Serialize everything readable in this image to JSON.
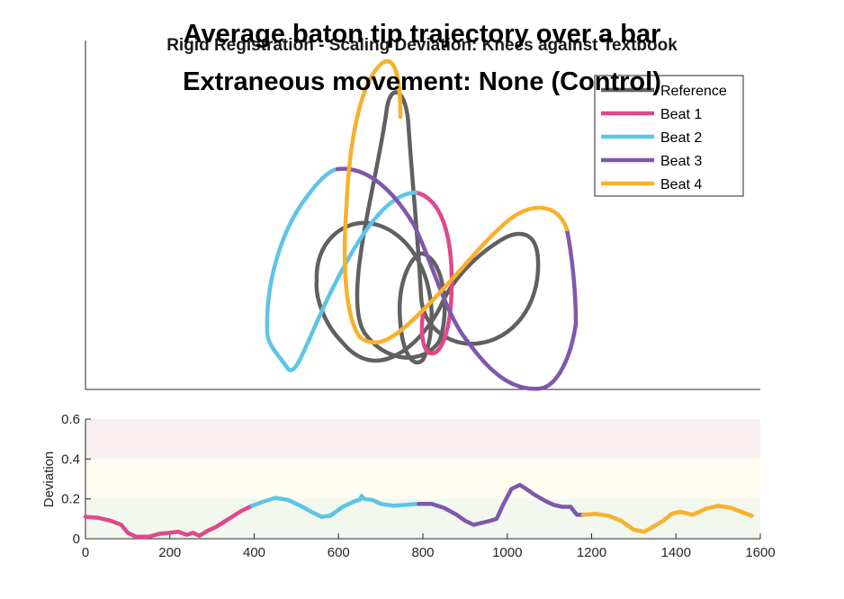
{
  "chart_data": [
    {
      "type": "line",
      "panel": "trajectory",
      "subtitle": "Rigid Registration - Scaling Deviation: Knees against Textbook",
      "title": "Average baton tip trajectory over a bar",
      "title_line2": "Extraneous movement: None (Control)",
      "grid": false,
      "legend_position": "top-right",
      "legend": [
        {
          "name": "Reference",
          "color": "#606060"
        },
        {
          "name": "Beat 1",
          "color": "#e0488b"
        },
        {
          "name": "Beat 2",
          "color": "#5ec4e8"
        },
        {
          "name": "Beat 3",
          "color": "#7e58ad"
        },
        {
          "name": "Beat 4",
          "color": "#f9b02c"
        }
      ]
    },
    {
      "type": "line",
      "panel": "deviation",
      "xlabel": "",
      "ylabel": "Deviation",
      "xlim": [
        0,
        1600
      ],
      "ylim": [
        0,
        0.6
      ],
      "xticks": [
        0,
        200,
        400,
        600,
        800,
        1000,
        1200,
        1400,
        1600
      ],
      "yticks": [
        0,
        0.2,
        0.4,
        0.6
      ],
      "grid": false,
      "bands": [
        {
          "from": 0,
          "to": 0.2,
          "color": "#f2f8ee"
        },
        {
          "from": 0.2,
          "to": 0.4,
          "color": "#fffdf1"
        },
        {
          "from": 0.4,
          "to": 0.6,
          "color": "#f9eef0"
        }
      ],
      "series": [
        {
          "name": "Beat 1",
          "color": "#e0488b",
          "x": [
            0,
            30,
            60,
            85,
            100,
            120,
            150,
            175,
            200,
            220,
            240,
            255,
            270,
            290,
            310,
            340,
            370,
            395
          ],
          "y": [
            0.11,
            0.105,
            0.09,
            0.07,
            0.03,
            0.01,
            0.01,
            0.025,
            0.03,
            0.035,
            0.02,
            0.03,
            0.015,
            0.04,
            0.06,
            0.1,
            0.14,
            0.165
          ]
        },
        {
          "name": "Beat 2",
          "color": "#5ec4e8",
          "x": [
            395,
            420,
            450,
            480,
            510,
            540,
            560,
            580,
            610,
            640,
            650,
            655,
            660,
            680,
            700,
            730,
            760,
            790
          ],
          "y": [
            0.165,
            0.185,
            0.205,
            0.195,
            0.165,
            0.13,
            0.11,
            0.115,
            0.16,
            0.19,
            0.195,
            0.215,
            0.2,
            0.195,
            0.175,
            0.165,
            0.17,
            0.175
          ]
        },
        {
          "name": "Beat 3",
          "color": "#7e58ad",
          "x": [
            790,
            820,
            850,
            880,
            900,
            920,
            940,
            960,
            975,
            990,
            1010,
            1030,
            1045,
            1065,
            1090,
            1110,
            1130,
            1150,
            1165,
            1180
          ],
          "y": [
            0.175,
            0.175,
            0.155,
            0.12,
            0.09,
            0.07,
            0.08,
            0.09,
            0.1,
            0.17,
            0.25,
            0.27,
            0.25,
            0.22,
            0.19,
            0.17,
            0.16,
            0.16,
            0.12,
            0.12
          ]
        },
        {
          "name": "Beat 4",
          "color": "#f9b02c",
          "x": [
            1180,
            1210,
            1240,
            1270,
            1300,
            1325,
            1350,
            1370,
            1390,
            1410,
            1440,
            1470,
            1500,
            1530,
            1555,
            1580
          ],
          "y": [
            0.12,
            0.125,
            0.115,
            0.09,
            0.045,
            0.035,
            0.065,
            0.09,
            0.125,
            0.135,
            0.12,
            0.15,
            0.165,
            0.155,
            0.135,
            0.115
          ]
        }
      ]
    }
  ]
}
